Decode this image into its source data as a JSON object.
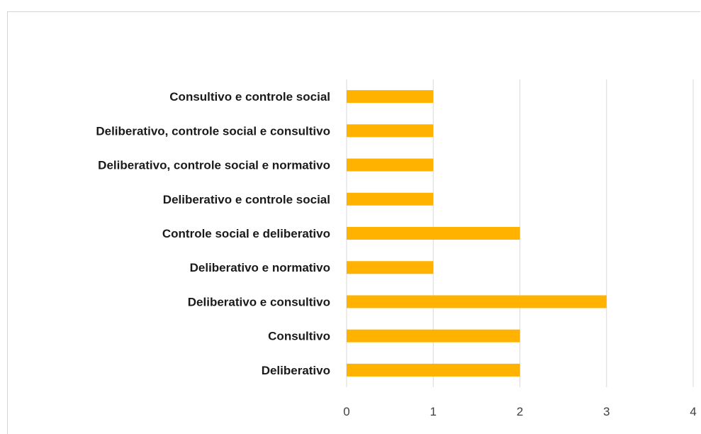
{
  "chart_data": {
    "type": "bar",
    "orientation": "horizontal",
    "title": "",
    "xlabel": "",
    "ylabel": "",
    "categories": [
      "Deliberativo",
      "Consultivo",
      "Deliberativo e consultivo",
      "Deliberativo e normativo",
      "Controle social e deliberativo",
      "Deliberativo e controle social",
      "Deliberativo, controle social e normativo",
      "Deliberativo,  controle social e consultivo",
      "Consultivo e controle social"
    ],
    "values": [
      2,
      2,
      3,
      1,
      2,
      1,
      1,
      1,
      1
    ],
    "xlim": [
      0,
      4
    ],
    "xticks": [
      "0",
      "1",
      "2",
      "3",
      "4"
    ],
    "grid": "vertical",
    "legend": "none",
    "bar_color": "#FFB300"
  }
}
